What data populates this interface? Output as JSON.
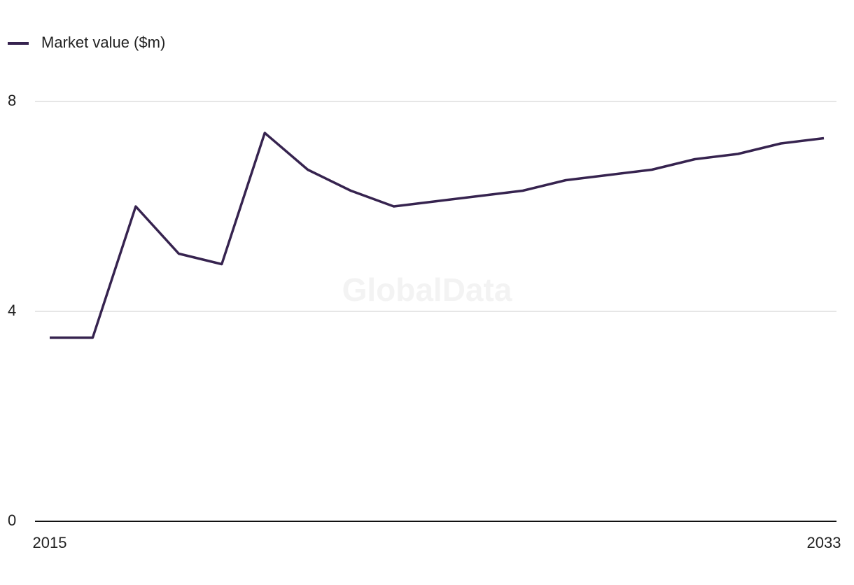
{
  "chart_data": {
    "type": "line",
    "watermark": "GlobalData",
    "x": [
      2015,
      2016,
      2017,
      2018,
      2019,
      2020,
      2021,
      2022,
      2023,
      2024,
      2025,
      2026,
      2027,
      2028,
      2029,
      2030,
      2031,
      2032,
      2033
    ],
    "series": [
      {
        "name": "Market value ($m)",
        "color": "#36234f",
        "values": [
          3.5,
          3.5,
          6.0,
          5.1,
          4.9,
          7.4,
          6.7,
          6.3,
          6.0,
          6.1,
          6.2,
          6.3,
          6.5,
          6.6,
          6.7,
          6.9,
          7.0,
          7.2,
          7.3
        ]
      }
    ],
    "xlim": [
      2015,
      2033
    ],
    "xticks": [
      2015,
      2033
    ],
    "ylim": [
      0,
      8
    ],
    "yticks": [
      0,
      4,
      8
    ],
    "grid": true
  }
}
